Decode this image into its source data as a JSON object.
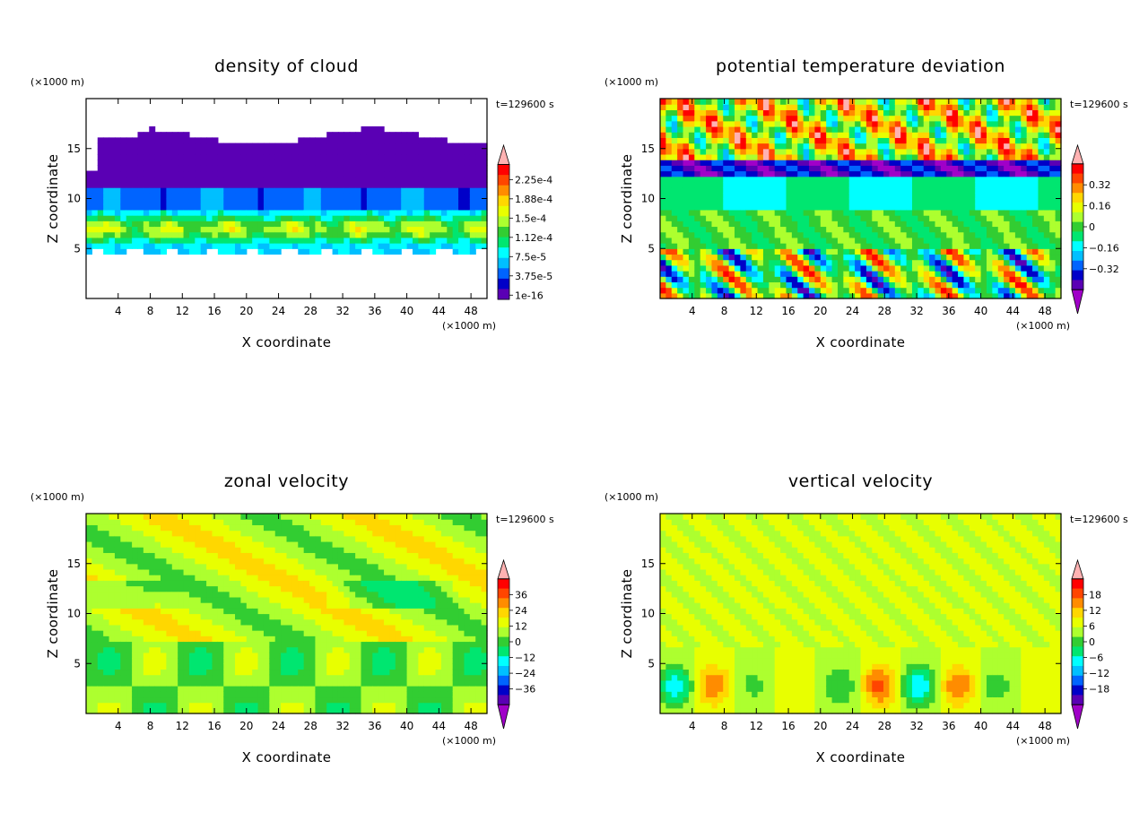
{
  "chart_data": [
    {
      "type": "heatmap",
      "title": "density of cloud",
      "xlabel": "X coordinate",
      "ylabel": "Z coordinate",
      "x_unit": "(×1000 m)",
      "y_unit": "(×1000 m)",
      "time_label": "t=129600 s",
      "xlim": [
        0,
        50
      ],
      "ylim": [
        0,
        20
      ],
      "x_ticks": [
        "4",
        "8",
        "12",
        "16",
        "20",
        "24",
        "28",
        "32",
        "36",
        "40",
        "44",
        "48"
      ],
      "y_ticks": [
        "5",
        "10",
        "15"
      ],
      "colorbar": {
        "labels": [
          "2.25e-4",
          "1.88e-4",
          "1.5e-4",
          "1.12e-4",
          "7.5e-5",
          "3.75e-5",
          "1e-16"
        ],
        "colors": [
          "#ffb2b2",
          "#ff0000",
          "#ff4500",
          "#ff8c00",
          "#ffd700",
          "#e8ff00",
          "#adff2f",
          "#32cd32",
          "#00e670",
          "#00ffff",
          "#00bfff",
          "#0064ff",
          "#0000c8",
          "#5a00b4"
        ],
        "upper_triangle": true,
        "lower_triangle": false
      }
    },
    {
      "type": "heatmap",
      "title": "potential temperature deviation",
      "xlabel": "X coordinate",
      "ylabel": "Z coordinate",
      "x_unit": "(×1000 m)",
      "y_unit": "(×1000 m)",
      "time_label": "t=129600 s",
      "xlim": [
        0,
        50
      ],
      "ylim": [
        0,
        20
      ],
      "x_ticks": [
        "4",
        "8",
        "12",
        "16",
        "20",
        "24",
        "28",
        "32",
        "36",
        "40",
        "44",
        "48"
      ],
      "y_ticks": [
        "5",
        "10",
        "15"
      ],
      "colorbar": {
        "labels": [
          "0.32",
          "0.16",
          "0",
          "−0.16",
          "−0.32"
        ],
        "colors": [
          "#ffb2b2",
          "#ff0000",
          "#ff4500",
          "#ff8c00",
          "#ffd700",
          "#e8ff00",
          "#adff2f",
          "#32cd32",
          "#00e670",
          "#00ffff",
          "#00bfff",
          "#0064ff",
          "#0000c8",
          "#5a00b4",
          "#a000c8"
        ],
        "upper_triangle": true,
        "lower_triangle": true
      }
    },
    {
      "type": "heatmap",
      "title": "zonal velocity",
      "xlabel": "X coordinate",
      "ylabel": "Z coordinate",
      "x_unit": "(×1000 m)",
      "y_unit": "(×1000 m)",
      "time_label": "t=129600 s",
      "xlim": [
        0,
        50
      ],
      "ylim": [
        0,
        20
      ],
      "x_ticks": [
        "4",
        "8",
        "12",
        "16",
        "20",
        "24",
        "28",
        "32",
        "36",
        "40",
        "44",
        "48"
      ],
      "y_ticks": [
        "5",
        "10",
        "15"
      ],
      "colorbar": {
        "labels": [
          "36",
          "24",
          "12",
          "0",
          "−12",
          "−24",
          "−36"
        ],
        "colors": [
          "#ffb2b2",
          "#ff0000",
          "#ff4500",
          "#ff8c00",
          "#ffd700",
          "#e8ff00",
          "#adff2f",
          "#32cd32",
          "#00e670",
          "#00ffff",
          "#00bfff",
          "#0064ff",
          "#0000c8",
          "#5a00b4",
          "#a000c8"
        ],
        "upper_triangle": true,
        "lower_triangle": true
      }
    },
    {
      "type": "heatmap",
      "title": "vertical velocity",
      "xlabel": "X coordinate",
      "ylabel": "Z coordinate",
      "x_unit": "(×1000 m)",
      "y_unit": "(×1000 m)",
      "time_label": "t=129600 s",
      "xlim": [
        0,
        50
      ],
      "ylim": [
        0,
        20
      ],
      "x_ticks": [
        "4",
        "8",
        "12",
        "16",
        "20",
        "24",
        "28",
        "32",
        "36",
        "40",
        "44",
        "48"
      ],
      "y_ticks": [
        "5",
        "10",
        "15"
      ],
      "colorbar": {
        "labels": [
          "18",
          "12",
          "6",
          "0",
          "−6",
          "−12",
          "−18"
        ],
        "colors": [
          "#ffb2b2",
          "#ff0000",
          "#ff4500",
          "#ff8c00",
          "#ffd700",
          "#e8ff00",
          "#adff2f",
          "#32cd32",
          "#00e670",
          "#00ffff",
          "#00bfff",
          "#0064ff",
          "#0000c8",
          "#5a00b4",
          "#a000c8"
        ],
        "upper_triangle": true,
        "lower_triangle": true
      }
    }
  ]
}
